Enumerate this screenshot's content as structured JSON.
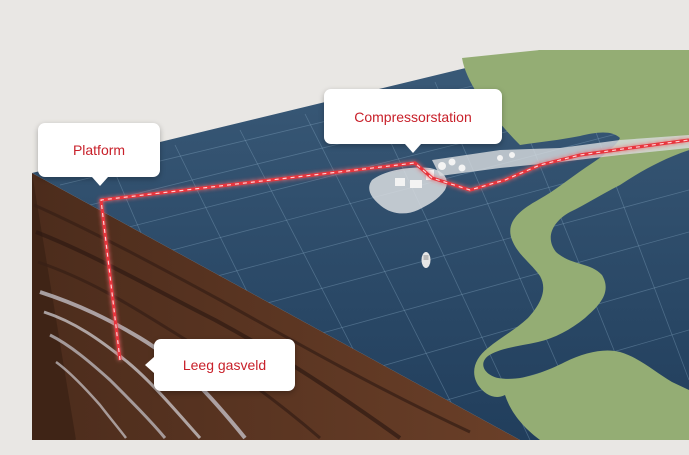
{
  "labels": {
    "platform": "Platform",
    "compressor_station": "Compressorstation",
    "empty_gas_field": "Leeg gasveld"
  },
  "colors": {
    "background": "#e9e7e4",
    "sea": "#2a4a68",
    "land": "#94ad74",
    "soil": "#5b3523",
    "pipeline": "#e8343c",
    "label_text": "#c8202a"
  },
  "icons": {
    "ship": "ship-icon",
    "pipeline": "pipeline-route"
  }
}
